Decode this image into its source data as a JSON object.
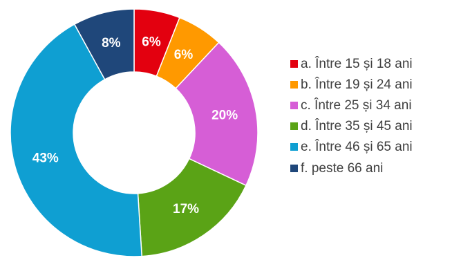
{
  "chart_data": {
    "type": "pie",
    "variant": "donut",
    "title": "",
    "categories": [
      "a. Între 15 și 18 ani",
      "b. Între 19 și 24 ani",
      "c. Între 25 și 34 ani",
      "d. Între 35 și 45 ani",
      "e. Între 46 și 65 ani",
      "f. peste 66 ani"
    ],
    "values": [
      6,
      6,
      20,
      17,
      43,
      8
    ],
    "labels": [
      "6%",
      "6%",
      "20%",
      "17%",
      "43%",
      "8%"
    ],
    "colors": [
      "#e3000f",
      "#ff9900",
      "#d65ed6",
      "#5aa316",
      "#0f9fd2",
      "#1f477a"
    ],
    "unit": "%",
    "legend": "right"
  }
}
